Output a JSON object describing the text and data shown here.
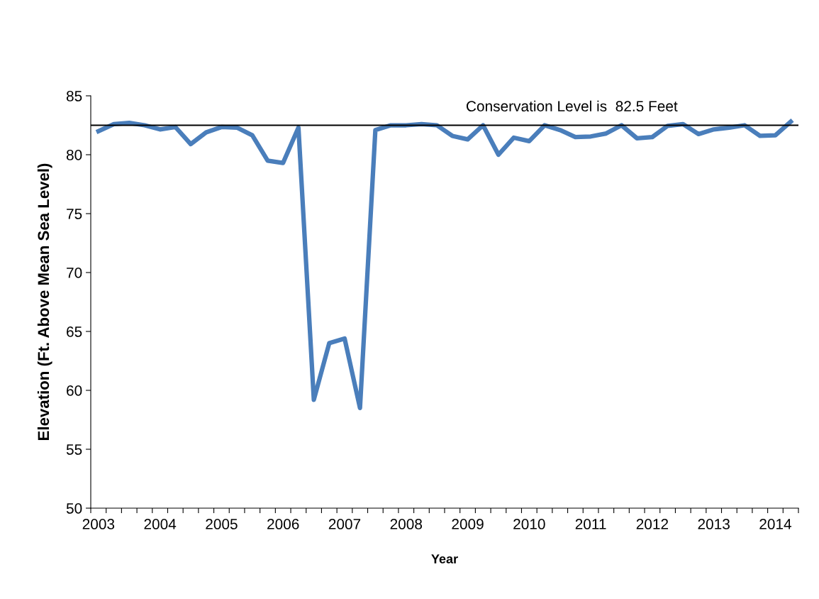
{
  "chart_data": {
    "type": "line",
    "xlabel": "Year",
    "ylabel": "Elevation (Ft. Above Mean Sea Level)",
    "categories": [
      "2003",
      null,
      null,
      null,
      "2004",
      null,
      null,
      null,
      "2005",
      null,
      null,
      null,
      "2006",
      null,
      null,
      null,
      "2007",
      null,
      null,
      null,
      "2008",
      null,
      null,
      null,
      "2009",
      null,
      null,
      null,
      "2010",
      null,
      null,
      null,
      "2011",
      null,
      null,
      null,
      "2012",
      null,
      null,
      null,
      "2013",
      null,
      null,
      null,
      "2014",
      null
    ],
    "series": [
      {
        "color": "#4a7ebb",
        "values": [
          82.0,
          82.6,
          82.7,
          82.5,
          82.15,
          82.35,
          80.9,
          81.9,
          82.35,
          82.3,
          81.65,
          79.5,
          79.3,
          82.3,
          59.2,
          64.0,
          64.4,
          58.5,
          82.1,
          82.5,
          82.5,
          82.6,
          82.5,
          81.6,
          81.3,
          82.5,
          80.0,
          81.45,
          81.15,
          82.5,
          82.1,
          81.5,
          81.55,
          81.8,
          82.5,
          81.4,
          81.5,
          82.45,
          82.6,
          81.75,
          82.15,
          82.3,
          82.5,
          81.6,
          81.65,
          82.8
        ]
      }
    ],
    "ylim": [
      50,
      85
    ],
    "yticks": [
      50,
      55,
      60,
      65,
      70,
      75,
      80,
      85
    ],
    "ref_lines": [
      {
        "axis": "y",
        "value": 82.5,
        "label": "Conservation Level is  82.5 Feet",
        "color": "#000000"
      }
    ],
    "grid": false,
    "marker": "none",
    "line_style": "solid"
  }
}
